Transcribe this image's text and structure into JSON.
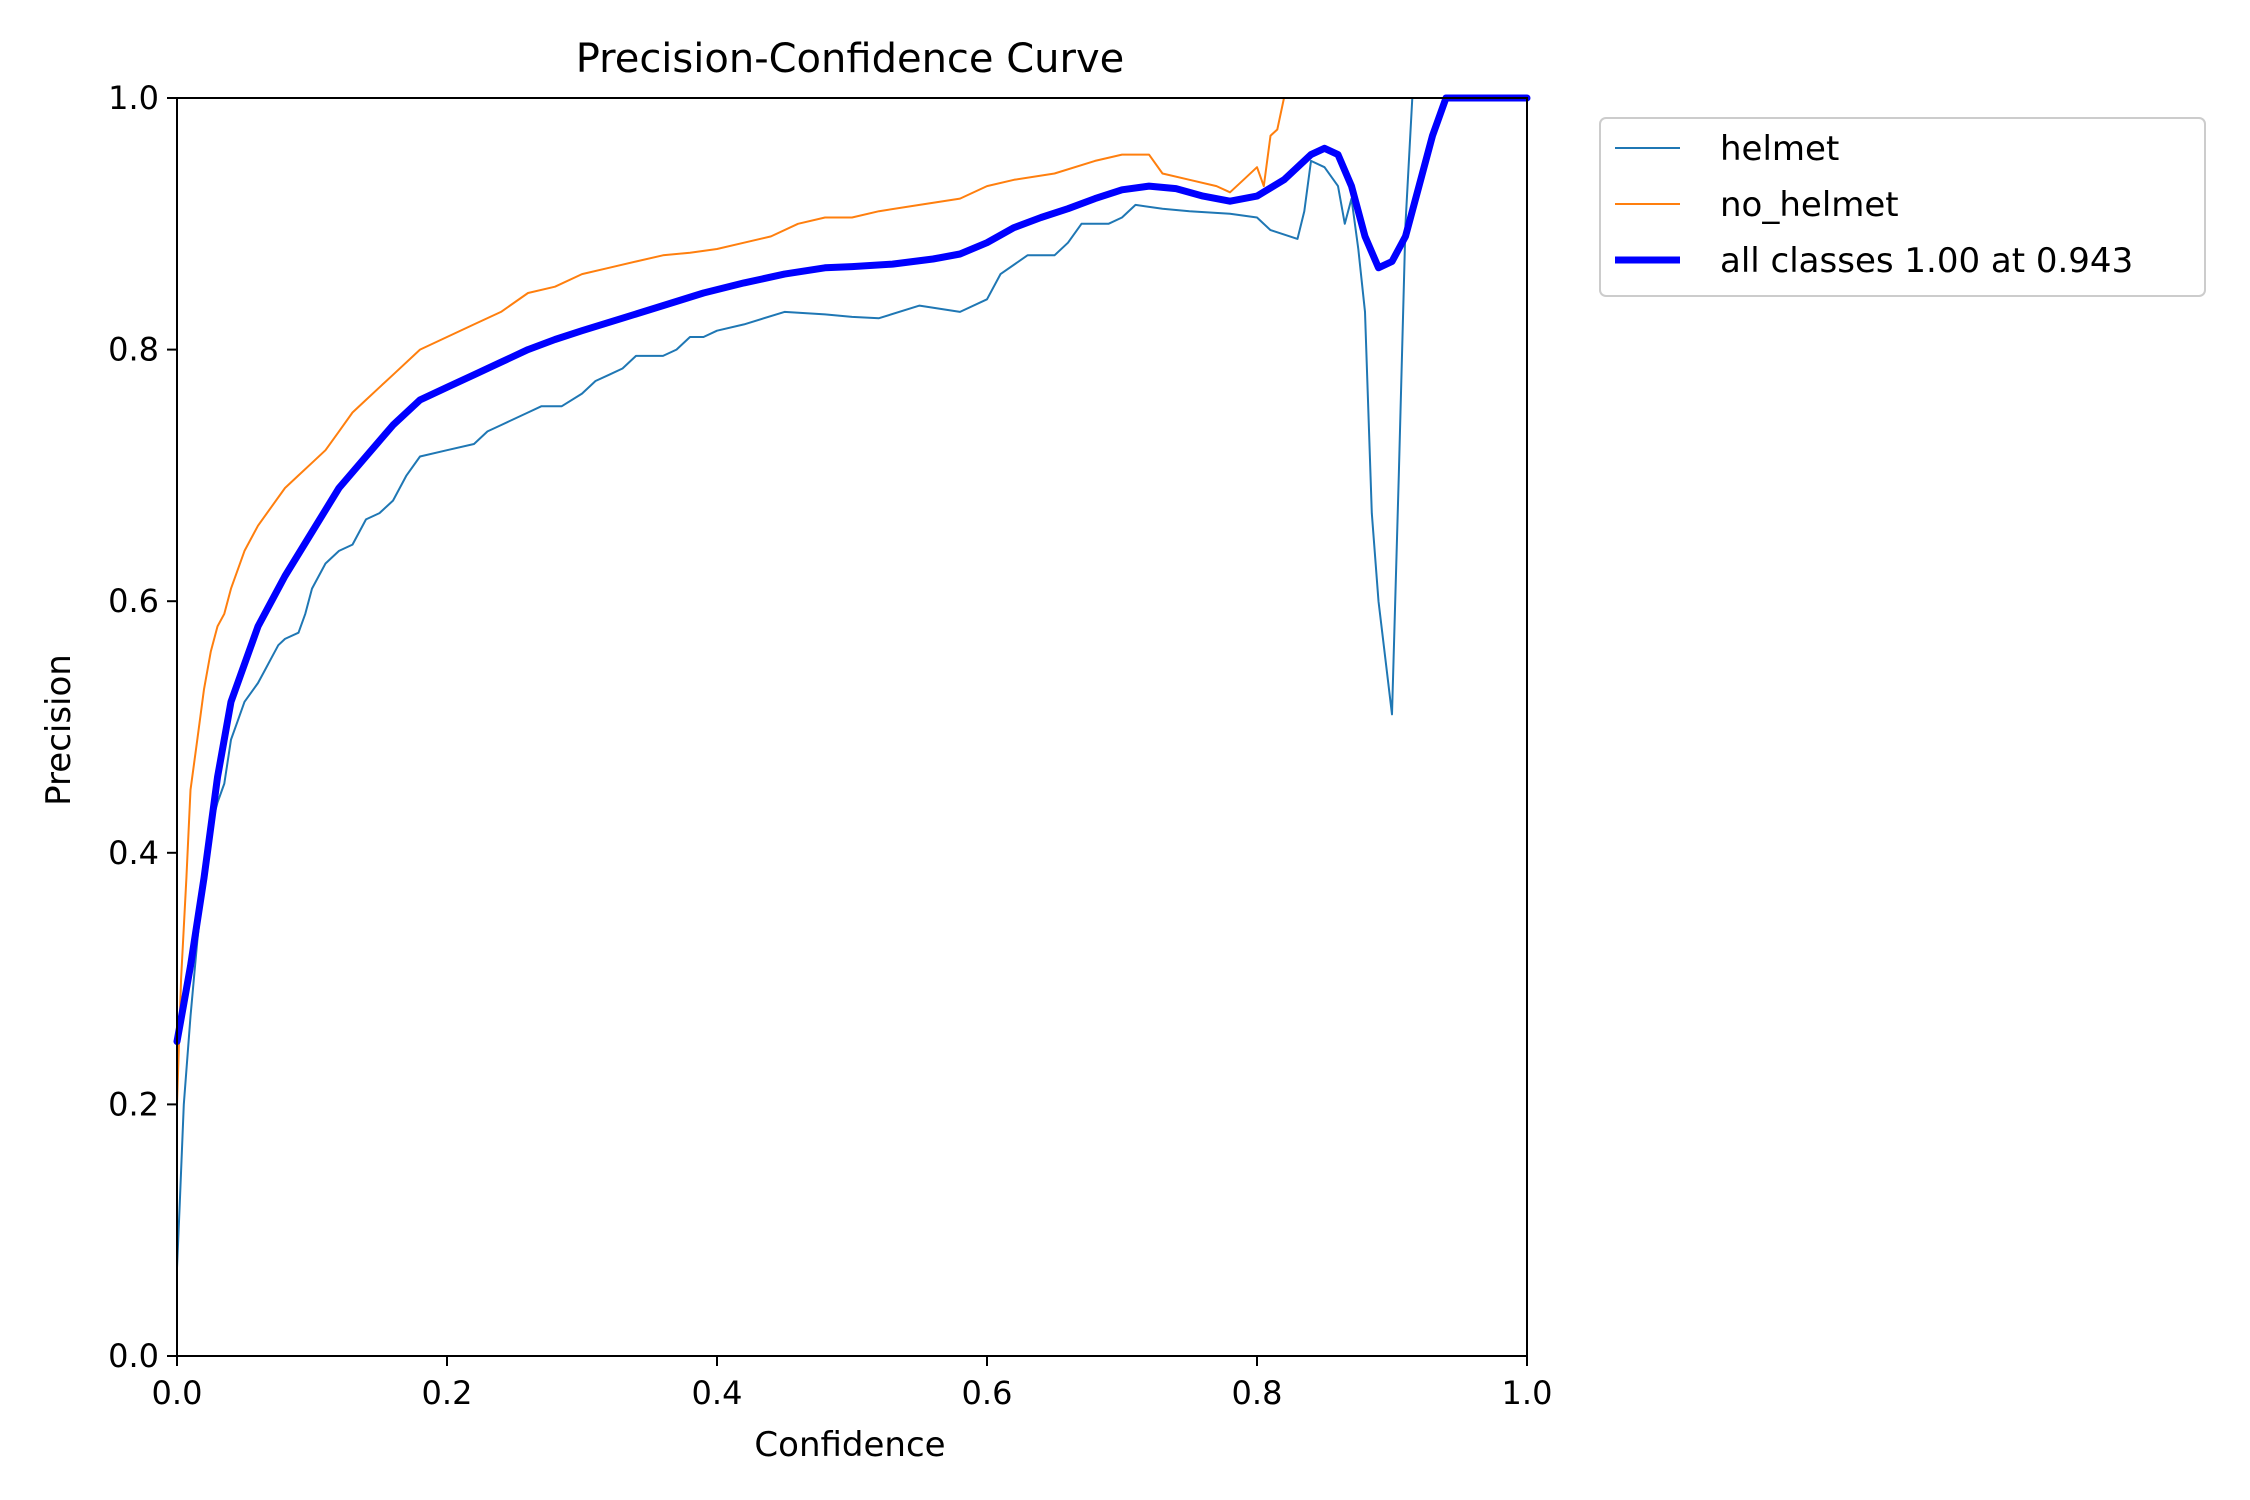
{
  "chart_data": {
    "type": "line",
    "title": "Precision-Confidence Curve",
    "xlabel": "Confidence",
    "ylabel": "Precision",
    "xlim": [
      0,
      1
    ],
    "ylim": [
      0,
      1
    ],
    "xticks": [
      "0.0",
      "0.2",
      "0.4",
      "0.6",
      "0.8",
      "1.0"
    ],
    "yticks": [
      "0.0",
      "0.2",
      "0.4",
      "0.6",
      "0.8",
      "1.0"
    ],
    "grid": false,
    "legend_position": "outside top-right",
    "series": [
      {
        "name": "helmet",
        "color": "#1f77b4",
        "width": 2,
        "points": [
          [
            0.0,
            0.07
          ],
          [
            0.002,
            0.12
          ],
          [
            0.005,
            0.2
          ],
          [
            0.01,
            0.27
          ],
          [
            0.015,
            0.33
          ],
          [
            0.02,
            0.38
          ],
          [
            0.025,
            0.42
          ],
          [
            0.03,
            0.44
          ],
          [
            0.035,
            0.455
          ],
          [
            0.04,
            0.49
          ],
          [
            0.045,
            0.505
          ],
          [
            0.05,
            0.52
          ],
          [
            0.06,
            0.535
          ],
          [
            0.065,
            0.545
          ],
          [
            0.07,
            0.555
          ],
          [
            0.075,
            0.565
          ],
          [
            0.08,
            0.57
          ],
          [
            0.09,
            0.575
          ],
          [
            0.095,
            0.59
          ],
          [
            0.1,
            0.61
          ],
          [
            0.11,
            0.63
          ],
          [
            0.12,
            0.64
          ],
          [
            0.13,
            0.645
          ],
          [
            0.14,
            0.665
          ],
          [
            0.15,
            0.67
          ],
          [
            0.16,
            0.68
          ],
          [
            0.17,
            0.7
          ],
          [
            0.18,
            0.715
          ],
          [
            0.2,
            0.72
          ],
          [
            0.22,
            0.725
          ],
          [
            0.23,
            0.735
          ],
          [
            0.24,
            0.74
          ],
          [
            0.26,
            0.75
          ],
          [
            0.27,
            0.755
          ],
          [
            0.285,
            0.755
          ],
          [
            0.3,
            0.765
          ],
          [
            0.31,
            0.775
          ],
          [
            0.32,
            0.78
          ],
          [
            0.33,
            0.785
          ],
          [
            0.34,
            0.795
          ],
          [
            0.36,
            0.795
          ],
          [
            0.37,
            0.8
          ],
          [
            0.38,
            0.81
          ],
          [
            0.39,
            0.81
          ],
          [
            0.4,
            0.815
          ],
          [
            0.42,
            0.82
          ],
          [
            0.45,
            0.83
          ],
          [
            0.48,
            0.828
          ],
          [
            0.5,
            0.826
          ],
          [
            0.52,
            0.825
          ],
          [
            0.55,
            0.835
          ],
          [
            0.58,
            0.83
          ],
          [
            0.6,
            0.84
          ],
          [
            0.61,
            0.86
          ],
          [
            0.63,
            0.875
          ],
          [
            0.65,
            0.875
          ],
          [
            0.66,
            0.885
          ],
          [
            0.67,
            0.9
          ],
          [
            0.69,
            0.9
          ],
          [
            0.7,
            0.905
          ],
          [
            0.71,
            0.915
          ],
          [
            0.73,
            0.912
          ],
          [
            0.75,
            0.91
          ],
          [
            0.78,
            0.908
          ],
          [
            0.8,
            0.905
          ],
          [
            0.81,
            0.895
          ],
          [
            0.83,
            0.888
          ],
          [
            0.835,
            0.91
          ],
          [
            0.84,
            0.95
          ],
          [
            0.85,
            0.945
          ],
          [
            0.86,
            0.93
          ],
          [
            0.865,
            0.9
          ],
          [
            0.87,
            0.92
          ],
          [
            0.875,
            0.88
          ],
          [
            0.88,
            0.83
          ],
          [
            0.885,
            0.67
          ],
          [
            0.89,
            0.6
          ],
          [
            0.9,
            0.51
          ],
          [
            0.905,
            0.7
          ],
          [
            0.91,
            0.9
          ],
          [
            0.915,
            1.0
          ],
          [
            1.0,
            1.0
          ]
        ]
      },
      {
        "name": "no_helmet",
        "color": "#ff7f0e",
        "width": 2,
        "points": [
          [
            0.0,
            0.2
          ],
          [
            0.003,
            0.3
          ],
          [
            0.007,
            0.38
          ],
          [
            0.01,
            0.45
          ],
          [
            0.015,
            0.49
          ],
          [
            0.02,
            0.53
          ],
          [
            0.025,
            0.56
          ],
          [
            0.03,
            0.58
          ],
          [
            0.035,
            0.59
          ],
          [
            0.04,
            0.61
          ],
          [
            0.05,
            0.64
          ],
          [
            0.06,
            0.66
          ],
          [
            0.07,
            0.675
          ],
          [
            0.08,
            0.69
          ],
          [
            0.09,
            0.7
          ],
          [
            0.1,
            0.71
          ],
          [
            0.11,
            0.72
          ],
          [
            0.12,
            0.735
          ],
          [
            0.13,
            0.75
          ],
          [
            0.14,
            0.76
          ],
          [
            0.15,
            0.77
          ],
          [
            0.16,
            0.78
          ],
          [
            0.18,
            0.8
          ],
          [
            0.2,
            0.81
          ],
          [
            0.22,
            0.82
          ],
          [
            0.24,
            0.83
          ],
          [
            0.26,
            0.845
          ],
          [
            0.28,
            0.85
          ],
          [
            0.3,
            0.86
          ],
          [
            0.32,
            0.865
          ],
          [
            0.34,
            0.87
          ],
          [
            0.36,
            0.875
          ],
          [
            0.38,
            0.877
          ],
          [
            0.4,
            0.88
          ],
          [
            0.42,
            0.885
          ],
          [
            0.44,
            0.89
          ],
          [
            0.46,
            0.9
          ],
          [
            0.48,
            0.905
          ],
          [
            0.5,
            0.905
          ],
          [
            0.52,
            0.91
          ],
          [
            0.55,
            0.915
          ],
          [
            0.58,
            0.92
          ],
          [
            0.6,
            0.93
          ],
          [
            0.62,
            0.935
          ],
          [
            0.65,
            0.94
          ],
          [
            0.68,
            0.95
          ],
          [
            0.7,
            0.955
          ],
          [
            0.72,
            0.955
          ],
          [
            0.73,
            0.94
          ],
          [
            0.75,
            0.935
          ],
          [
            0.77,
            0.93
          ],
          [
            0.78,
            0.925
          ],
          [
            0.79,
            0.935
          ],
          [
            0.8,
            0.945
          ],
          [
            0.805,
            0.93
          ],
          [
            0.81,
            0.97
          ],
          [
            0.815,
            0.975
          ],
          [
            0.82,
            1.0
          ],
          [
            1.0,
            1.0
          ]
        ]
      },
      {
        "name": "all classes 1.00 at 0.943",
        "color": "#0000ff",
        "width": 7,
        "points": [
          [
            0.0,
            0.25
          ],
          [
            0.005,
            0.28
          ],
          [
            0.01,
            0.31
          ],
          [
            0.02,
            0.38
          ],
          [
            0.03,
            0.46
          ],
          [
            0.04,
            0.52
          ],
          [
            0.05,
            0.55
          ],
          [
            0.06,
            0.58
          ],
          [
            0.07,
            0.6
          ],
          [
            0.08,
            0.62
          ],
          [
            0.1,
            0.655
          ],
          [
            0.12,
            0.69
          ],
          [
            0.14,
            0.715
          ],
          [
            0.16,
            0.74
          ],
          [
            0.18,
            0.76
          ],
          [
            0.2,
            0.77
          ],
          [
            0.22,
            0.78
          ],
          [
            0.24,
            0.79
          ],
          [
            0.26,
            0.8
          ],
          [
            0.28,
            0.808
          ],
          [
            0.3,
            0.815
          ],
          [
            0.33,
            0.825
          ],
          [
            0.36,
            0.835
          ],
          [
            0.39,
            0.845
          ],
          [
            0.42,
            0.853
          ],
          [
            0.45,
            0.86
          ],
          [
            0.48,
            0.865
          ],
          [
            0.5,
            0.866
          ],
          [
            0.53,
            0.868
          ],
          [
            0.56,
            0.872
          ],
          [
            0.58,
            0.876
          ],
          [
            0.6,
            0.885
          ],
          [
            0.62,
            0.897
          ],
          [
            0.64,
            0.905
          ],
          [
            0.66,
            0.912
          ],
          [
            0.68,
            0.92
          ],
          [
            0.7,
            0.927
          ],
          [
            0.72,
            0.93
          ],
          [
            0.74,
            0.928
          ],
          [
            0.76,
            0.922
          ],
          [
            0.78,
            0.918
          ],
          [
            0.8,
            0.922
          ],
          [
            0.82,
            0.935
          ],
          [
            0.84,
            0.955
          ],
          [
            0.85,
            0.96
          ],
          [
            0.86,
            0.955
          ],
          [
            0.87,
            0.93
          ],
          [
            0.88,
            0.89
          ],
          [
            0.89,
            0.865
          ],
          [
            0.9,
            0.87
          ],
          [
            0.91,
            0.89
          ],
          [
            0.92,
            0.93
          ],
          [
            0.93,
            0.97
          ],
          [
            0.94,
            1.0
          ],
          [
            1.0,
            1.0
          ]
        ]
      }
    ]
  }
}
